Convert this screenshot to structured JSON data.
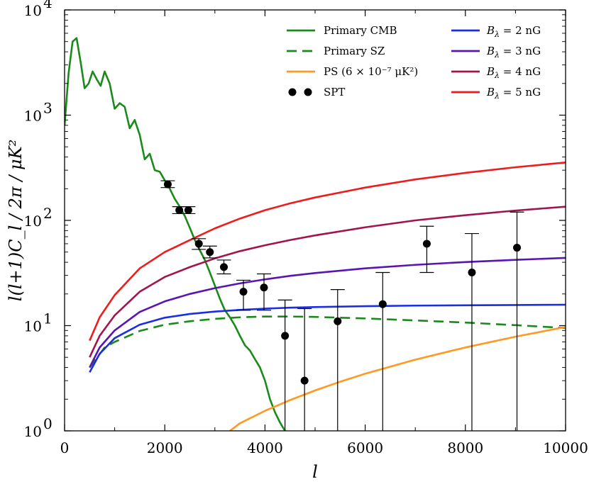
{
  "chart_data": {
    "type": "line",
    "xlabel": "l",
    "ylabel": "l(l+1)C_l / 2π / μK²",
    "xlim": [
      0,
      10000
    ],
    "ylim": [
      1,
      10000
    ],
    "yscale": "log",
    "xticks": [
      0,
      2000,
      4000,
      6000,
      8000,
      10000
    ],
    "yticks": [
      {
        "value": 1,
        "base": "10",
        "exp": "0"
      },
      {
        "value": 10,
        "base": "10",
        "exp": "1"
      },
      {
        "value": 100,
        "base": "10",
        "exp": "2"
      },
      {
        "value": 1000,
        "base": "10",
        "exp": "3"
      },
      {
        "value": 10000,
        "base": "10",
        "exp": "4"
      }
    ],
    "grid": false,
    "legend_left": [
      {
        "key": "cmb",
        "label": "Primary CMB",
        "color": "#1a8a1a",
        "style": "solid"
      },
      {
        "key": "sz",
        "label": "Primary SZ",
        "color": "#1a8a1a",
        "style": "dashed"
      },
      {
        "key": "ps",
        "label": "PS (6 × 10⁻⁷ μK²)",
        "color": "#ff9922",
        "style": "solid"
      },
      {
        "key": "spt",
        "label": "SPT",
        "color": "#000000",
        "style": "points"
      }
    ],
    "legend_right": [
      {
        "key": "b2",
        "label": "B_λ = 2 nG",
        "sym": "B",
        "sub": "λ",
        "rest": " = 2 nG",
        "color": "#1a2ee6"
      },
      {
        "key": "b3",
        "label": "B_λ = 3 nG",
        "sym": "B",
        "sub": "λ",
        "rest": " = 3 nG",
        "color": "#5a14b4"
      },
      {
        "key": "b4",
        "label": "B_λ = 4 nG",
        "sym": "B",
        "sub": "λ",
        "rest": " = 4 nG",
        "color": "#a3144d"
      },
      {
        "key": "b5",
        "label": "B_λ = 5 nG",
        "sym": "B",
        "sub": "λ",
        "rest": " = 5 nG",
        "color": "#ee1c1c"
      }
    ],
    "series": [
      {
        "key": "cmb",
        "x": [
          0,
          80,
          160,
          240,
          320,
          400,
          480,
          560,
          640,
          720,
          800,
          900,
          1000,
          1100,
          1200,
          1300,
          1400,
          1500,
          1600,
          1700,
          1800,
          1900,
          2000,
          2100,
          2200,
          2300,
          2400,
          2500,
          2600,
          2700,
          2800,
          2900,
          3000,
          3100,
          3200,
          3300,
          3400,
          3500,
          3600,
          3700,
          3800,
          3900,
          4000,
          4100,
          4200,
          4300,
          4400
        ],
        "y": [
          800,
          2500,
          5000,
          5400,
          3200,
          1800,
          2000,
          2600,
          2200,
          1900,
          2600,
          2000,
          1150,
          1300,
          1200,
          750,
          900,
          650,
          380,
          430,
          300,
          290,
          240,
          200,
          160,
          135,
          110,
          85,
          65,
          52,
          42,
          32,
          24,
          18,
          14,
          12,
          10,
          8,
          6.5,
          5.8,
          4.8,
          4.0,
          3.0,
          2.0,
          1.5,
          1.2,
          1.0
        ]
      },
      {
        "key": "sz",
        "x": [
          500,
          800,
          1000,
          1500,
          2000,
          2500,
          3000,
          3500,
          4000,
          4500,
          5000,
          6000,
          7000,
          8000,
          9000,
          10000
        ],
        "y": [
          4.0,
          6.2,
          7.0,
          8.9,
          10.2,
          11.0,
          11.6,
          12.0,
          12.2,
          12.2,
          12.1,
          11.7,
          11.2,
          10.7,
          10.1,
          9.5
        ]
      },
      {
        "key": "ps",
        "x": [
          3300,
          3500,
          4000,
          4500,
          5000,
          5500,
          6000,
          7000,
          8000,
          9000,
          10000
        ],
        "y": [
          1.0,
          1.18,
          1.55,
          1.96,
          2.42,
          2.93,
          3.49,
          4.75,
          6.2,
          7.85,
          9.7
        ]
      },
      {
        "key": "b2",
        "x": [
          500,
          700,
          1000,
          1500,
          2000,
          2500,
          3000,
          3500,
          4000,
          4500,
          5000,
          6000,
          7000,
          8000,
          9000,
          10000
        ],
        "y": [
          3.6,
          5.4,
          7.6,
          10.2,
          11.9,
          12.9,
          13.6,
          14.1,
          14.5,
          14.8,
          15.0,
          15.3,
          15.5,
          15.6,
          15.7,
          15.8
        ]
      },
      {
        "key": "b3",
        "x": [
          500,
          700,
          1000,
          1500,
          2000,
          2500,
          3000,
          3500,
          4000,
          4500,
          5000,
          6000,
          7000,
          8000,
          9000,
          10000
        ],
        "y": [
          4.0,
          6.2,
          9.0,
          13.5,
          17.0,
          20.0,
          22.7,
          25.2,
          27.5,
          29.7,
          31.6,
          35.0,
          37.8,
          40.2,
          42.2,
          44.0
        ]
      },
      {
        "key": "b4",
        "x": [
          500,
          700,
          1000,
          1500,
          2000,
          2500,
          3000,
          3500,
          4000,
          4500,
          5000,
          6000,
          7000,
          8000,
          9000,
          10000
        ],
        "y": [
          5.0,
          8.0,
          12.5,
          21.0,
          29.0,
          36.0,
          43.5,
          51.0,
          58.0,
          65.0,
          72.0,
          86.0,
          100.0,
          112.0,
          124.0,
          135.0
        ]
      },
      {
        "key": "b5",
        "x": [
          500,
          700,
          1000,
          1500,
          2000,
          2500,
          3000,
          3500,
          4000,
          4500,
          5000,
          6000,
          7000,
          8000,
          9000,
          10000
        ],
        "y": [
          7.2,
          12.0,
          19.5,
          35.0,
          50.0,
          65.0,
          84.0,
          104.0,
          125.0,
          145.0,
          165.0,
          205.0,
          245.0,
          283.0,
          320.0,
          355.0
        ]
      }
    ],
    "spt_points": [
      {
        "x": 2060,
        "y": 220,
        "lo": 205,
        "hi": 238
      },
      {
        "x": 2290,
        "y": 125,
        "lo": 116,
        "hi": 135
      },
      {
        "x": 2470,
        "y": 125,
        "lo": 116,
        "hi": 135
      },
      {
        "x": 2680,
        "y": 60,
        "lo": 53,
        "hi": 67
      },
      {
        "x": 2900,
        "y": 50,
        "lo": 44,
        "hi": 57
      },
      {
        "x": 3180,
        "y": 36,
        "lo": 31,
        "hi": 42
      },
      {
        "x": 3570,
        "y": 21,
        "lo": 14,
        "hi": 27
      },
      {
        "x": 3980,
        "y": 23,
        "lo": 14,
        "hi": 31
      },
      {
        "x": 4400,
        "y": 8,
        "lo": 0.5,
        "hi": 17.5
      },
      {
        "x": 4790,
        "y": 3,
        "lo": 0.5,
        "hi": 14.5
      },
      {
        "x": 5450,
        "y": 11,
        "lo": 0.5,
        "hi": 22
      },
      {
        "x": 6350,
        "y": 16,
        "lo": 0.5,
        "hi": 32
      },
      {
        "x": 7230,
        "y": 60,
        "lo": 32,
        "hi": 88
      },
      {
        "x": 8130,
        "y": 32,
        "lo": 0.5,
        "hi": 75
      },
      {
        "x": 9030,
        "y": 55,
        "lo": 0.5,
        "hi": 120
      }
    ]
  }
}
